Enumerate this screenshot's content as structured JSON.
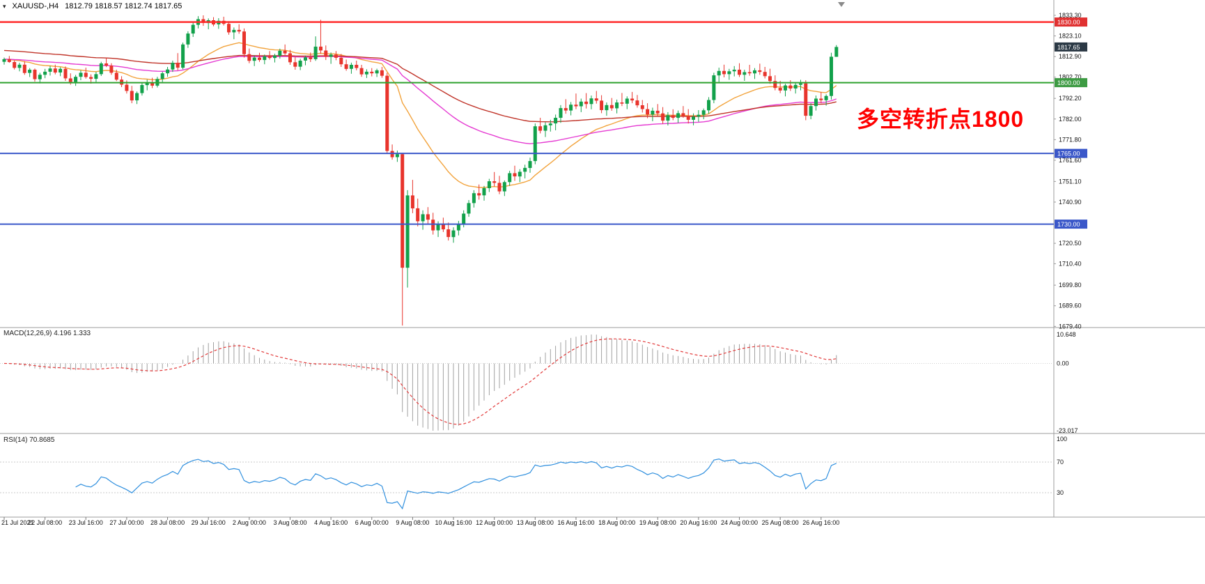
{
  "header": {
    "symbol": "XAUUSD-,H4",
    "ohlc": "1812.79 1818.57 1812.74 1817.65"
  },
  "annotation": {
    "text": "多空转折点1800",
    "color": "#FF0000"
  },
  "panels": {
    "macd": {
      "label": "MACD(12,26,9) 4.196 1.333",
      "axis_max": "10.648",
      "axis_zero": "0.00",
      "axis_min": "-23.017"
    },
    "rsi": {
      "label": "RSI(14) 70.8685",
      "levels": [
        "100",
        "70",
        "30"
      ]
    }
  },
  "price_axis": {
    "labels": [
      "1833.30",
      "1823.10",
      "1812.90",
      "1802.70",
      "1792.20",
      "1782.00",
      "1771.80",
      "1761.60",
      "1751.10",
      "1740.90",
      "1720.50",
      "1710.40",
      "1699.80",
      "1689.60",
      "1679.40"
    ],
    "badges": [
      {
        "value": "1830.00",
        "price": 1830.0,
        "color": "#E03131",
        "name": "resistance-1830"
      },
      {
        "value": "1817.65",
        "price": 1817.65,
        "color": "#2B3945",
        "name": "current-price"
      },
      {
        "value": "1800.00",
        "price": 1800.0,
        "color": "#3D9B43",
        "name": "pivot-1800"
      },
      {
        "value": "1765.00",
        "price": 1765.0,
        "color": "#3A57C9",
        "name": "support-1765"
      },
      {
        "value": "1730.00",
        "price": 1730.0,
        "color": "#3A57C9",
        "name": "support-1730"
      }
    ]
  },
  "hlines": [
    {
      "price": 1830.0,
      "color": "#FF2A2A",
      "width": 2.5
    },
    {
      "price": 1800.0,
      "color": "#2EA12E",
      "width": 2
    },
    {
      "price": 1765.0,
      "color": "#3A57C9",
      "width": 2
    },
    {
      "price": 1730.0,
      "color": "#3A57C9",
      "width": 2
    }
  ],
  "time_axis": {
    "labels": [
      "21 Jul 2021",
      "22 Jul 08:00",
      "23 Jul 16:00",
      "27 Jul 00:00",
      "28 Jul 08:00",
      "29 Jul 16:00",
      "2 Aug 00:00",
      "3 Aug 08:00",
      "4 Aug 16:00",
      "6 Aug 00:00",
      "9 Aug 08:00",
      "10 Aug 16:00",
      "12 Aug 00:00",
      "13 Aug 08:00",
      "16 Aug 16:00",
      "18 Aug 00:00",
      "19 Aug 08:00",
      "20 Aug 16:00",
      "24 Aug 00:00",
      "25 Aug 08:00",
      "26 Aug 16:00"
    ]
  },
  "chart_data": {
    "type": "candlestick",
    "symbol": "XAUUSD-",
    "timeframe": "H4",
    "current_ohlc": {
      "open": 1812.79,
      "high": 1818.57,
      "low": 1812.74,
      "close": 1817.65
    },
    "price_range": [
      1679.4,
      1833.3
    ],
    "key_levels": [
      1830.0,
      1800.0,
      1765.0,
      1730.0
    ],
    "bars_per_label": 8,
    "colors": {
      "bull": "#12A14B",
      "bear": "#E8342C"
    },
    "moving_averages": [
      {
        "name": "ma-fast-orange",
        "period": 21,
        "color": "#F2A33C"
      },
      {
        "name": "ma-mid-magenta",
        "period": 60,
        "color": "#E53BD2"
      },
      {
        "name": "ma-slow-red",
        "period": 95,
        "color": "#C03328",
        "seed": 1816
      }
    ],
    "indicators": {
      "macd": {
        "fast": 12,
        "slow": 26,
        "signal": 9,
        "values": "4.196 1.333",
        "histogram_color": "#A0A0A0",
        "signal_color": "#E23A3A",
        "axis": [
          10.648,
          0.0,
          -23.017
        ]
      },
      "rsi": {
        "period": 14,
        "value": 70.8685,
        "color": "#2F8FDE",
        "levels": [
          70,
          30
        ]
      }
    },
    "ohlc": [
      [
        1810.3,
        1812.4,
        1808.9,
        1811.6
      ],
      [
        1811.6,
        1813.2,
        1809.8,
        1810.2
      ],
      [
        1810.2,
        1811.0,
        1806.5,
        1807.3
      ],
      [
        1807.3,
        1809.8,
        1805.6,
        1808.9
      ],
      [
        1808.9,
        1810.6,
        1803.9,
        1804.8
      ],
      [
        1804.8,
        1807.2,
        1802.8,
        1806.4
      ],
      [
        1806.4,
        1807.0,
        1800.5,
        1801.7
      ],
      [
        1801.7,
        1804.9,
        1799.6,
        1803.9
      ],
      [
        1803.9,
        1806.8,
        1802.2,
        1805.4
      ],
      [
        1805.4,
        1808.3,
        1803.5,
        1807.0
      ],
      [
        1807.0,
        1808.9,
        1804.1,
        1805.0
      ],
      [
        1805.0,
        1807.6,
        1803.2,
        1806.8
      ],
      [
        1806.8,
        1808.0,
        1800.9,
        1802.1
      ],
      [
        1802.1,
        1804.6,
        1799.0,
        1800.3
      ],
      [
        1800.3,
        1803.8,
        1798.4,
        1802.9
      ],
      [
        1802.9,
        1806.1,
        1801.2,
        1804.9
      ],
      [
        1804.9,
        1807.4,
        1802.0,
        1802.8
      ],
      [
        1802.8,
        1804.1,
        1799.5,
        1801.9
      ],
      [
        1801.9,
        1805.3,
        1800.1,
        1804.2
      ],
      [
        1804.2,
        1810.3,
        1803.3,
        1809.5
      ],
      [
        1809.5,
        1812.2,
        1807.7,
        1808.4
      ],
      [
        1808.4,
        1809.6,
        1803.9,
        1804.9
      ],
      [
        1804.9,
        1806.4,
        1800.8,
        1801.5
      ],
      [
        1801.5,
        1803.2,
        1797.8,
        1799.0
      ],
      [
        1799.0,
        1801.1,
        1794.6,
        1795.9
      ],
      [
        1795.9,
        1798.4,
        1789.8,
        1791.2
      ],
      [
        1791.2,
        1795.6,
        1789.4,
        1794.8
      ],
      [
        1794.8,
        1799.9,
        1793.6,
        1798.8
      ],
      [
        1798.8,
        1801.5,
        1796.2,
        1800.1
      ],
      [
        1800.1,
        1802.4,
        1797.3,
        1798.5
      ],
      [
        1798.5,
        1802.9,
        1797.6,
        1801.8
      ],
      [
        1801.8,
        1805.4,
        1800.2,
        1804.6
      ],
      [
        1804.6,
        1807.8,
        1802.9,
        1806.5
      ],
      [
        1806.5,
        1810.9,
        1805.3,
        1809.8
      ],
      [
        1809.8,
        1814.6,
        1806.1,
        1807.4
      ],
      [
        1807.4,
        1819.8,
        1806.6,
        1818.9
      ],
      [
        1818.9,
        1825.4,
        1817.2,
        1824.3
      ],
      [
        1824.3,
        1829.8,
        1822.6,
        1828.6
      ],
      [
        1828.6,
        1832.9,
        1826.8,
        1831.4
      ],
      [
        1831.4,
        1833.3,
        1828.1,
        1829.5
      ],
      [
        1829.5,
        1831.8,
        1826.4,
        1830.9
      ],
      [
        1830.9,
        1832.4,
        1827.9,
        1828.8
      ],
      [
        1828.8,
        1831.9,
        1826.6,
        1830.6
      ],
      [
        1830.6,
        1832.6,
        1828.3,
        1829.1
      ],
      [
        1829.1,
        1830.4,
        1823.7,
        1824.9
      ],
      [
        1824.9,
        1827.3,
        1821.5,
        1826.1
      ],
      [
        1826.1,
        1828.9,
        1824.2,
        1825.3
      ],
      [
        1825.3,
        1826.8,
        1812.4,
        1814.1
      ],
      [
        1814.1,
        1816.9,
        1809.6,
        1810.8
      ],
      [
        1810.8,
        1813.5,
        1808.2,
        1812.4
      ],
      [
        1812.4,
        1814.8,
        1810.3,
        1811.2
      ],
      [
        1811.2,
        1813.9,
        1809.1,
        1813.0
      ],
      [
        1813.0,
        1815.6,
        1811.4,
        1812.2
      ],
      [
        1812.2,
        1814.3,
        1810.0,
        1813.4
      ],
      [
        1813.4,
        1816.8,
        1811.9,
        1815.8
      ],
      [
        1815.8,
        1818.9,
        1813.7,
        1814.5
      ],
      [
        1814.5,
        1816.2,
        1808.8,
        1810.1
      ],
      [
        1810.1,
        1812.6,
        1806.4,
        1807.9
      ],
      [
        1807.9,
        1811.8,
        1806.2,
        1810.9
      ],
      [
        1810.9,
        1813.4,
        1808.6,
        1812.5
      ],
      [
        1812.5,
        1814.9,
        1810.2,
        1811.6
      ],
      [
        1811.6,
        1822.9,
        1810.8,
        1817.8
      ],
      [
        1817.8,
        1831.1,
        1814.3,
        1815.9
      ],
      [
        1815.9,
        1818.4,
        1811.2,
        1812.8
      ],
      [
        1812.8,
        1814.9,
        1809.3,
        1813.9
      ],
      [
        1813.9,
        1815.6,
        1811.1,
        1812.3
      ],
      [
        1812.3,
        1814.2,
        1807.8,
        1809.1
      ],
      [
        1809.1,
        1811.4,
        1805.9,
        1806.8
      ],
      [
        1806.8,
        1809.9,
        1804.4,
        1808.8
      ],
      [
        1808.8,
        1810.9,
        1806.1,
        1807.2
      ],
      [
        1807.2,
        1808.8,
        1802.9,
        1804.1
      ],
      [
        1804.1,
        1806.6,
        1802.3,
        1805.4
      ],
      [
        1805.4,
        1807.2,
        1803.1,
        1804.6
      ],
      [
        1804.6,
        1806.9,
        1802.8,
        1806.1
      ],
      [
        1806.1,
        1807.8,
        1802.4,
        1803.4
      ],
      [
        1803.4,
        1804.9,
        1764.8,
        1766.2
      ],
      [
        1766.2,
        1769.4,
        1761.9,
        1763.1
      ],
      [
        1763.1,
        1766.4,
        1760.8,
        1764.6
      ],
      [
        1764.6,
        1765.2,
        1679.8,
        1708.4
      ],
      [
        1708.4,
        1746.8,
        1698.6,
        1744.2
      ],
      [
        1744.2,
        1751.9,
        1735.4,
        1737.8
      ],
      [
        1737.8,
        1742.6,
        1728.9,
        1731.4
      ],
      [
        1731.4,
        1736.8,
        1727.2,
        1734.9
      ],
      [
        1734.9,
        1738.4,
        1729.8,
        1732.2
      ],
      [
        1732.2,
        1735.6,
        1724.8,
        1726.9
      ],
      [
        1726.9,
        1731.4,
        1723.6,
        1729.8
      ],
      [
        1729.8,
        1733.2,
        1726.1,
        1727.4
      ],
      [
        1727.4,
        1730.8,
        1721.9,
        1723.6
      ],
      [
        1723.6,
        1728.4,
        1720.8,
        1726.9
      ],
      [
        1726.9,
        1731.6,
        1724.4,
        1730.2
      ],
      [
        1730.2,
        1736.8,
        1728.4,
        1735.2
      ],
      [
        1735.2,
        1741.9,
        1733.6,
        1740.4
      ],
      [
        1740.4,
        1746.8,
        1738.2,
        1745.3
      ],
      [
        1745.3,
        1749.6,
        1742.1,
        1744.2
      ],
      [
        1744.2,
        1748.9,
        1741.6,
        1747.8
      ],
      [
        1747.8,
        1752.4,
        1745.9,
        1751.2
      ],
      [
        1751.2,
        1755.8,
        1748.6,
        1750.4
      ],
      [
        1750.4,
        1753.9,
        1744.8,
        1746.2
      ],
      [
        1746.2,
        1751.6,
        1743.9,
        1750.8
      ],
      [
        1750.8,
        1756.4,
        1748.9,
        1755.2
      ],
      [
        1755.2,
        1758.9,
        1751.4,
        1753.6
      ],
      [
        1753.6,
        1757.2,
        1750.8,
        1755.9
      ],
      [
        1755.9,
        1759.4,
        1752.6,
        1757.8
      ],
      [
        1757.8,
        1762.9,
        1755.4,
        1761.2
      ],
      [
        1761.2,
        1779.8,
        1759.6,
        1778.4
      ],
      [
        1778.4,
        1782.6,
        1774.9,
        1776.2
      ],
      [
        1776.2,
        1780.4,
        1773.1,
        1778.9
      ],
      [
        1778.9,
        1781.6,
        1775.8,
        1779.8
      ],
      [
        1779.8,
        1784.2,
        1776.4,
        1782.6
      ],
      [
        1782.6,
        1788.9,
        1780.1,
        1787.4
      ],
      [
        1787.4,
        1791.8,
        1784.6,
        1786.2
      ],
      [
        1786.2,
        1790.4,
        1783.8,
        1789.1
      ],
      [
        1789.1,
        1794.6,
        1786.9,
        1788.3
      ],
      [
        1788.3,
        1792.1,
        1785.4,
        1790.6
      ],
      [
        1790.6,
        1794.8,
        1787.2,
        1789.4
      ],
      [
        1789.4,
        1793.6,
        1786.8,
        1792.2
      ],
      [
        1792.2,
        1795.9,
        1789.6,
        1791.1
      ],
      [
        1791.1,
        1793.8,
        1784.9,
        1786.4
      ],
      [
        1786.4,
        1790.2,
        1783.6,
        1788.9
      ],
      [
        1788.9,
        1792.4,
        1786.1,
        1787.3
      ],
      [
        1787.3,
        1791.6,
        1784.8,
        1790.2
      ],
      [
        1790.2,
        1794.9,
        1788.4,
        1789.6
      ],
      [
        1789.6,
        1793.2,
        1786.9,
        1792.1
      ],
      [
        1792.1,
        1795.4,
        1789.8,
        1791.2
      ],
      [
        1791.2,
        1793.9,
        1787.6,
        1788.8
      ],
      [
        1788.8,
        1791.4,
        1785.2,
        1786.9
      ],
      [
        1786.9,
        1789.8,
        1782.4,
        1784.2
      ],
      [
        1784.2,
        1787.6,
        1780.9,
        1786.1
      ],
      [
        1786.1,
        1789.4,
        1783.2,
        1784.8
      ],
      [
        1784.8,
        1787.9,
        1779.6,
        1781.2
      ],
      [
        1781.2,
        1785.4,
        1778.8,
        1783.9
      ],
      [
        1783.9,
        1786.8,
        1781.4,
        1782.6
      ],
      [
        1782.6,
        1786.2,
        1780.1,
        1784.9
      ],
      [
        1784.9,
        1788.4,
        1782.6,
        1783.4
      ],
      [
        1783.4,
        1786.9,
        1779.8,
        1781.6
      ],
      [
        1781.6,
        1784.8,
        1778.9,
        1783.2
      ],
      [
        1783.2,
        1786.4,
        1780.6,
        1784.1
      ],
      [
        1784.1,
        1787.2,
        1781.9,
        1786.3
      ],
      [
        1786.3,
        1792.8,
        1784.6,
        1791.4
      ],
      [
        1791.4,
        1804.9,
        1789.8,
        1803.6
      ],
      [
        1803.6,
        1807.4,
        1800.2,
        1805.8
      ],
      [
        1805.8,
        1808.9,
        1802.6,
        1804.2
      ],
      [
        1804.2,
        1806.8,
        1801.4,
        1805.6
      ],
      [
        1805.6,
        1808.2,
        1803.1,
        1806.4
      ],
      [
        1806.4,
        1809.6,
        1802.8,
        1803.9
      ],
      [
        1803.9,
        1806.4,
        1800.9,
        1805.2
      ],
      [
        1805.2,
        1808.8,
        1803.4,
        1804.6
      ],
      [
        1804.6,
        1807.2,
        1801.8,
        1806.1
      ],
      [
        1806.1,
        1809.4,
        1803.9,
        1805.3
      ],
      [
        1805.3,
        1807.8,
        1802.1,
        1803.2
      ],
      [
        1803.2,
        1806.9,
        1799.4,
        1800.8
      ],
      [
        1800.8,
        1803.6,
        1796.2,
        1797.4
      ],
      [
        1797.4,
        1800.9,
        1794.8,
        1796.1
      ],
      [
        1796.1,
        1799.4,
        1793.2,
        1798.6
      ],
      [
        1798.6,
        1801.2,
        1795.9,
        1797.1
      ],
      [
        1797.1,
        1799.8,
        1794.6,
        1798.9
      ],
      [
        1798.9,
        1801.4,
        1796.2,
        1799.6
      ],
      [
        1799.6,
        1801.2,
        1781.4,
        1783.6
      ],
      [
        1783.6,
        1789.8,
        1781.9,
        1788.4
      ],
      [
        1788.4,
        1793.6,
        1786.2,
        1792.1
      ],
      [
        1792.1,
        1795.4,
        1789.8,
        1791.3
      ],
      [
        1791.3,
        1794.2,
        1788.6,
        1793.4
      ],
      [
        1793.4,
        1814.8,
        1791.6,
        1812.8
      ],
      [
        1812.79,
        1818.57,
        1812.74,
        1817.65
      ]
    ]
  }
}
